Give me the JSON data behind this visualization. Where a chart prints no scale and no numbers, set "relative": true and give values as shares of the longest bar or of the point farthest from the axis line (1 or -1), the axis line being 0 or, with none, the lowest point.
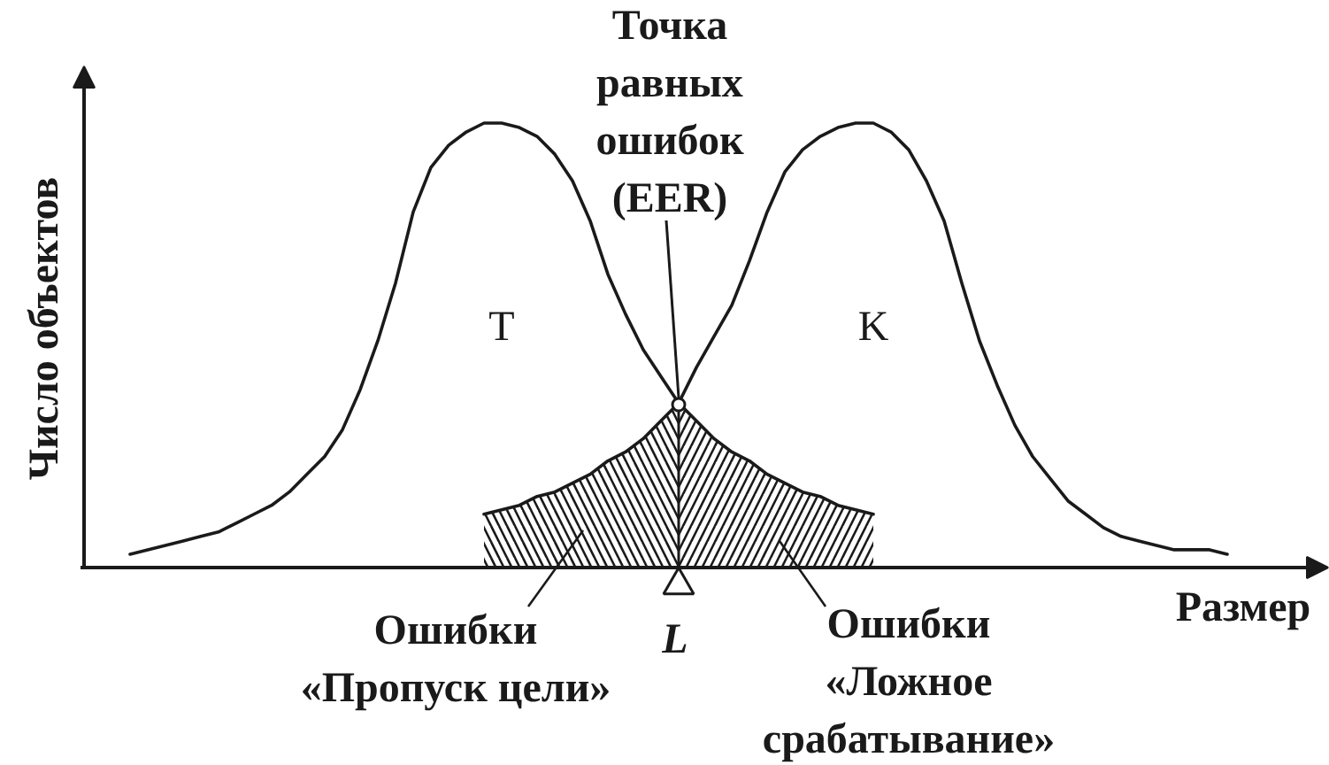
{
  "chart_data": {
    "type": "line",
    "relative": true,
    "xlabel": "Размер",
    "ylabel": "Число объектов",
    "categories": [
      null,
      null,
      null,
      null,
      null,
      null,
      null,
      null,
      null,
      null,
      null,
      null,
      null,
      null,
      null,
      null,
      null,
      null,
      null,
      null,
      null,
      null,
      null,
      null,
      null,
      null,
      null,
      null,
      null,
      null,
      null,
      null,
      null,
      null,
      null,
      null,
      null,
      null,
      null,
      null,
      null,
      null,
      null,
      null,
      null,
      null,
      null,
      null,
      null,
      null,
      null,
      null,
      null,
      null,
      null,
      null,
      null,
      null,
      null,
      null,
      null,
      null,
      null
    ],
    "series": [
      {
        "name": "T",
        "color": "#1a1a1a",
        "values": [
          0.03,
          0.04,
          0.05,
          0.06,
          0.07,
          0.08,
          0.1,
          0.12,
          0.14,
          0.17,
          0.21,
          0.25,
          0.31,
          0.4,
          0.51,
          0.64,
          0.8,
          0.9,
          0.95,
          0.98,
          1.0,
          1.0,
          0.99,
          0.97,
          0.93,
          0.87,
          0.78,
          0.66,
          0.57,
          0.49,
          0.43,
          0.37,
          0.33,
          0.29,
          0.26,
          0.24,
          0.21,
          0.19,
          0.17,
          0.16,
          0.14,
          0.13,
          0.12,
          null,
          null,
          null,
          null,
          null,
          null,
          null,
          null,
          null,
          null,
          null,
          null,
          null,
          null,
          null,
          null,
          null,
          null,
          null,
          null
        ]
      },
      {
        "name": "K",
        "color": "#1a1a1a",
        "values": [
          null,
          null,
          null,
          null,
          null,
          null,
          null,
          null,
          null,
          null,
          null,
          null,
          null,
          null,
          null,
          null,
          null,
          null,
          null,
          null,
          0.12,
          0.13,
          0.14,
          0.16,
          0.17,
          0.19,
          0.21,
          0.24,
          0.26,
          0.29,
          0.33,
          0.37,
          0.45,
          0.52,
          0.59,
          0.69,
          0.8,
          0.89,
          0.94,
          0.97,
          0.99,
          1.0,
          1.0,
          0.98,
          0.94,
          0.87,
          0.78,
          0.64,
          0.51,
          0.41,
          0.32,
          0.25,
          0.2,
          0.15,
          0.12,
          0.09,
          0.07,
          0.06,
          0.05,
          0.04,
          0.04,
          0.04,
          0.03
        ]
      },
      {
        "type": "area",
        "color": "#1a1a1a",
        "values": [
          null,
          null,
          null,
          null,
          null,
          null,
          null,
          null,
          null,
          null,
          null,
          null,
          null,
          null,
          null,
          null,
          null,
          null,
          null,
          null,
          0.12,
          0.13,
          0.14,
          0.16,
          0.17,
          0.19,
          0.21,
          0.24,
          0.26,
          0.29,
          0.33,
          0.37,
          null,
          null,
          null,
          null,
          null,
          null,
          null,
          null,
          null,
          null,
          null,
          null,
          null,
          null,
          null,
          null,
          null,
          null,
          null,
          null,
          null,
          null,
          null,
          null,
          null,
          null,
          null,
          null,
          null,
          null,
          null
        ]
      },
      {
        "type": "area",
        "color": "#1a1a1a",
        "values": [
          null,
          null,
          null,
          null,
          null,
          null,
          null,
          null,
          null,
          null,
          null,
          null,
          null,
          null,
          null,
          null,
          null,
          null,
          null,
          null,
          null,
          null,
          null,
          null,
          null,
          null,
          null,
          null,
          null,
          null,
          null,
          0.37,
          0.33,
          0.29,
          0.26,
          0.24,
          0.21,
          0.19,
          0.17,
          0.16,
          0.14,
          0.13,
          0.12,
          null,
          null,
          null,
          null,
          null,
          null,
          null,
          null,
          null,
          null,
          null,
          null,
          null,
          null,
          null,
          null,
          null,
          null,
          null,
          null
        ]
      }
    ],
    "annotations": [
      "Точка\nравных\nошибок\n(EER)",
      "Ошибки\n«Пропуск цели»",
      "Ошибки\n«Ложное\nсрабатывание»",
      "L"
    ]
  }
}
